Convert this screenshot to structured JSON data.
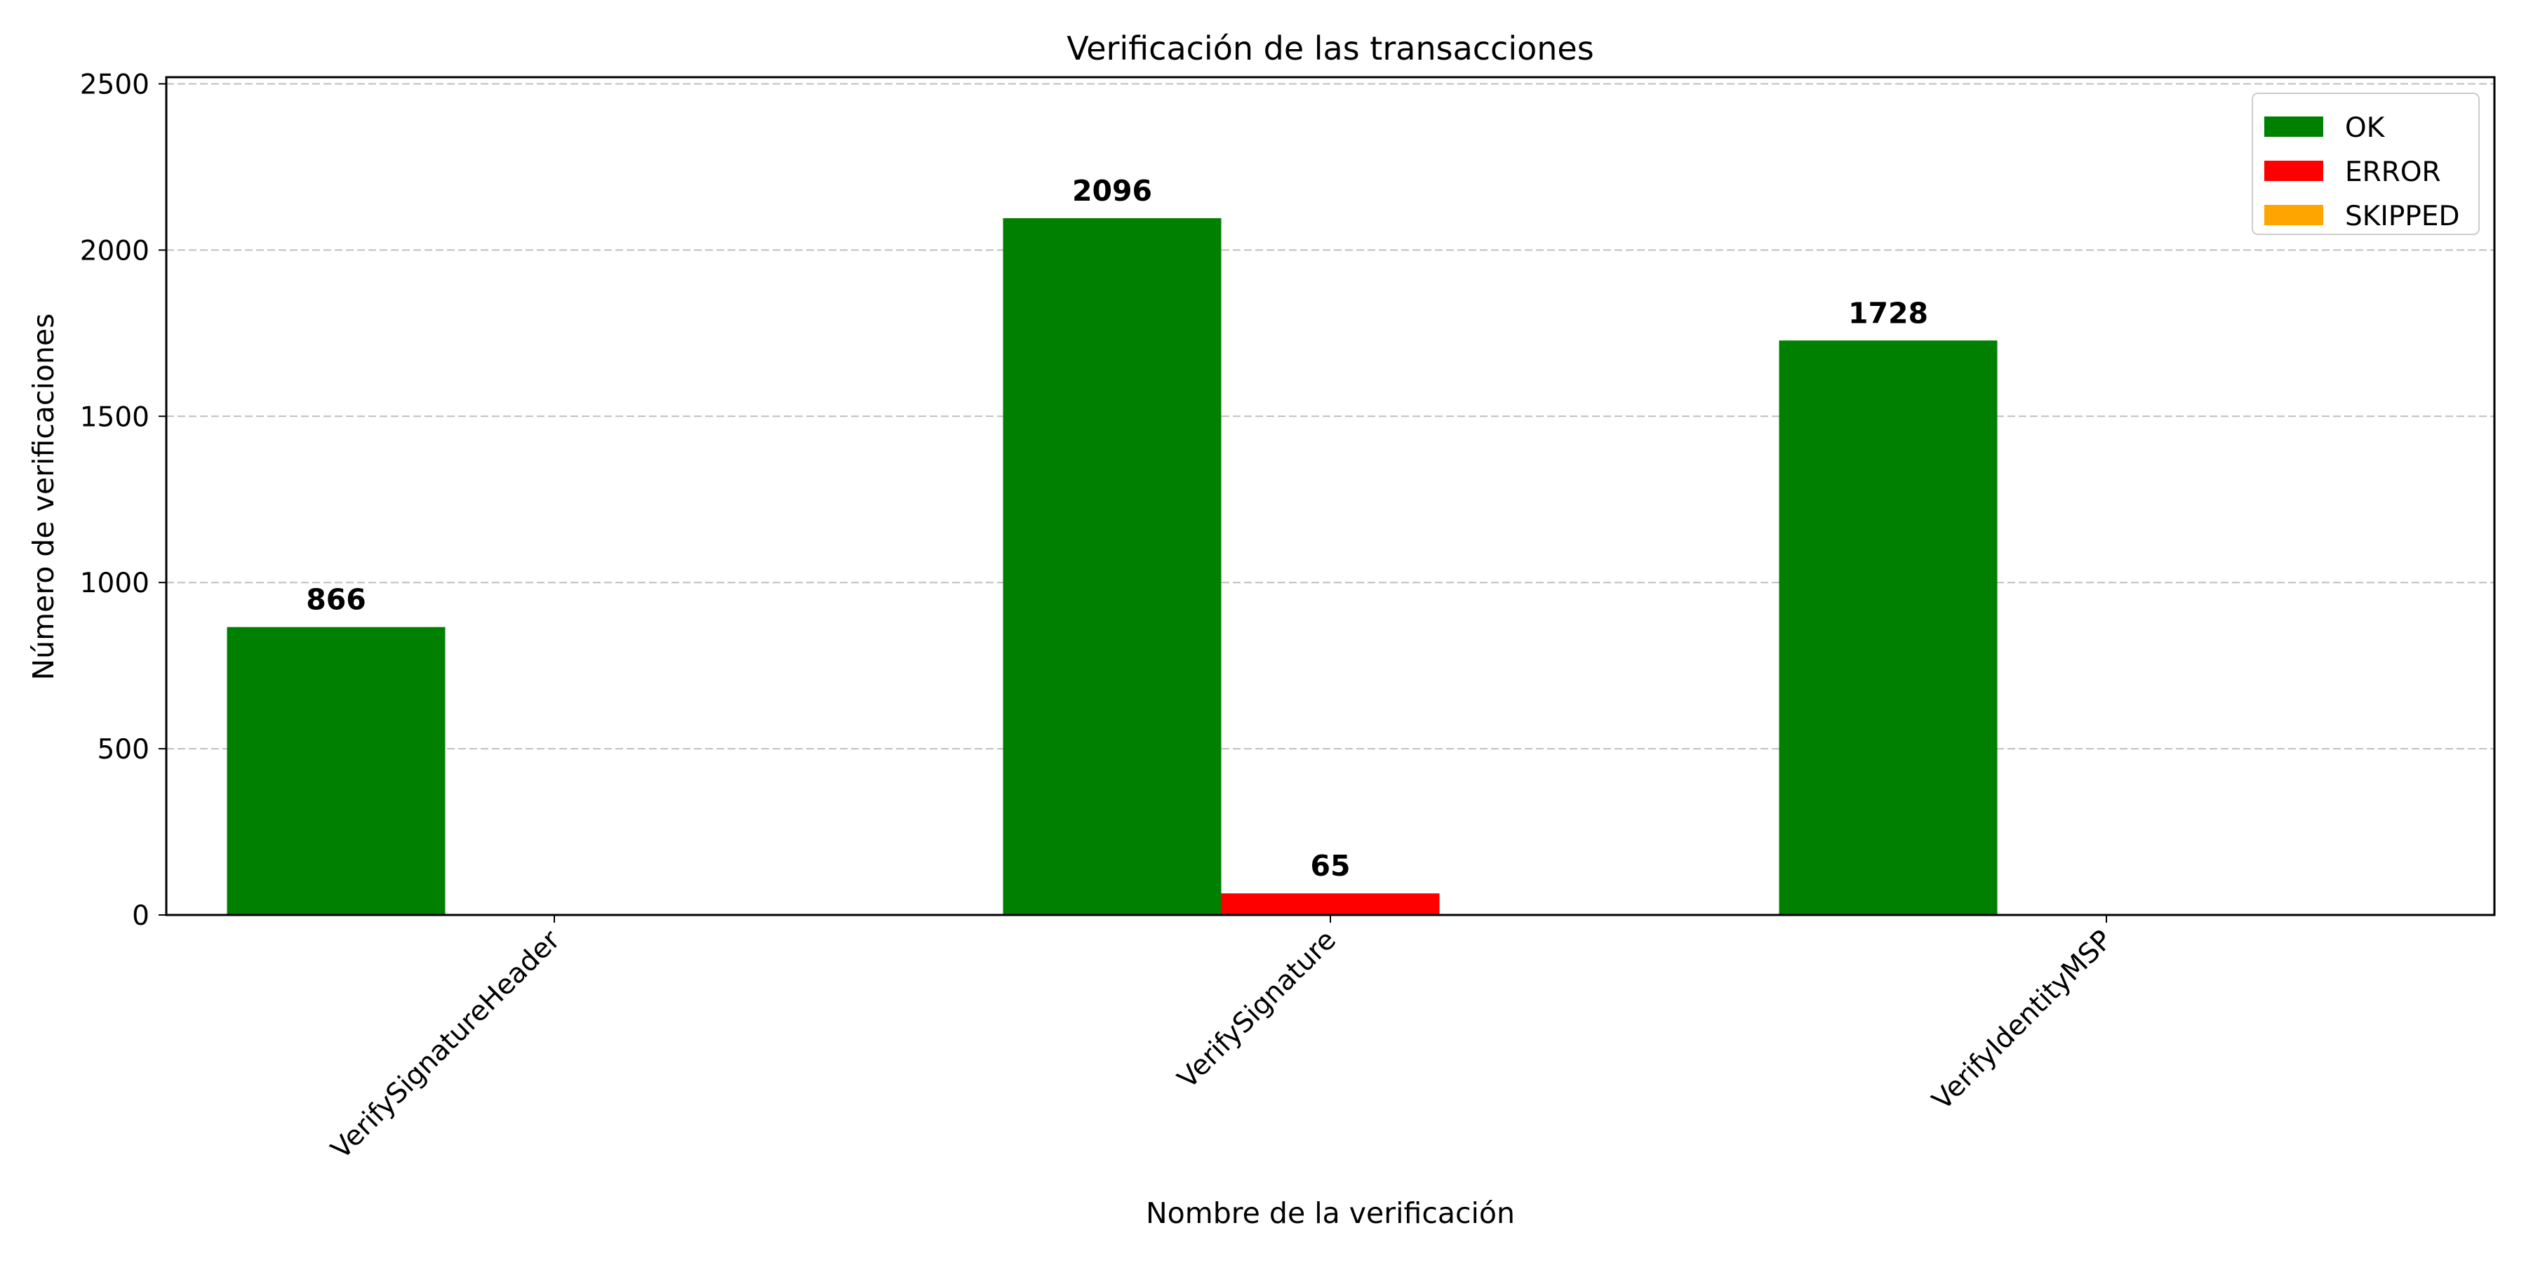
{
  "chart_data": {
    "type": "bar",
    "title": "Verificación de las transacciones",
    "xlabel": "Nombre de la verificación",
    "ylabel": "Número de verificaciones",
    "categories": [
      "VerifySignatureHeader",
      "VerifySignature",
      "VerifyIdentityMSP"
    ],
    "series": [
      {
        "name": "OK",
        "values": [
          866,
          2096,
          1728
        ],
        "color": "#008000"
      },
      {
        "name": "ERROR",
        "values": [
          0,
          65,
          0
        ],
        "color": "#ff0000"
      },
      {
        "name": "SKIPPED",
        "values": [
          0,
          0,
          0
        ],
        "color": "#ffa500"
      }
    ],
    "data_labels": [
      {
        "category": "VerifySignatureHeader",
        "series": "OK",
        "text": "866"
      },
      {
        "category": "VerifySignature",
        "series": "OK",
        "text": "2096"
      },
      {
        "category": "VerifySignature",
        "series": "ERROR",
        "text": "65"
      },
      {
        "category": "VerifyIdentityMSP",
        "series": "OK",
        "text": "1728"
      }
    ],
    "ylim": [
      0,
      2520
    ],
    "yticks": [
      0,
      500,
      1000,
      1500,
      2000,
      2500
    ],
    "grid": "y-dashed",
    "legend_position": "top-right"
  }
}
